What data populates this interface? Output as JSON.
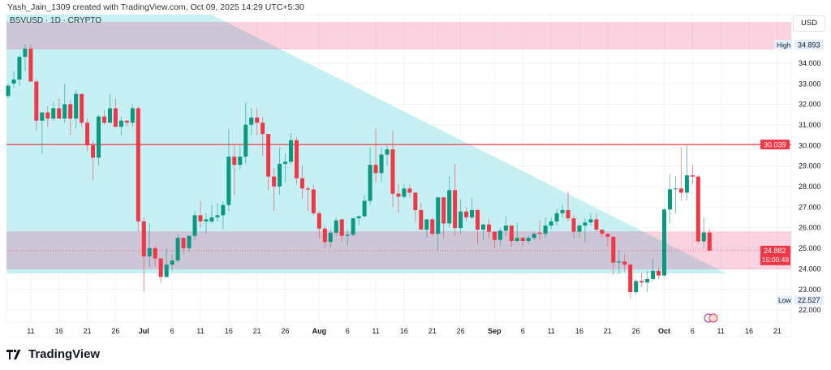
{
  "header": {
    "credit": "Yash_Jain_1309 created with TradingView.com, Oct 09, 2025 14:29 UTC+5:30",
    "symbol": "BSVUSD · 1D · CRYPTO",
    "currency": "USD"
  },
  "footer": {
    "brand": "TradingView"
  },
  "colors": {
    "up": "#089981",
    "down": "#f23645",
    "cyan_zone": "#c6f0f4",
    "pink_zone": "#e91e63",
    "level": "#f23645"
  },
  "chart_data": {
    "type": "candlestick",
    "title": "BSVUSD · 1D · CRYPTO",
    "start_date": "2025-06-07",
    "end_date": "2025-10-09",
    "ylim": [
      21.6,
      36.35
    ],
    "y_ticks": [
      "22.000",
      "23.000",
      "24.000",
      "25.000",
      "26.000",
      "27.000",
      "28.000",
      "29.000",
      "30.000",
      "31.000",
      "32.000",
      "33.000",
      "34.000"
    ],
    "y_tick_values": [
      22,
      23,
      24,
      25,
      26,
      27,
      28,
      29,
      30,
      31,
      32,
      33,
      34
    ],
    "x_ticks": [
      {
        "i": 5,
        "label": "11"
      },
      {
        "i": 10,
        "label": "16"
      },
      {
        "i": 15,
        "label": "21"
      },
      {
        "i": 20,
        "label": "26"
      },
      {
        "i": 25,
        "label": "Jul",
        "bold": true
      },
      {
        "i": 30,
        "label": "6"
      },
      {
        "i": 35,
        "label": "11"
      },
      {
        "i": 40,
        "label": "16"
      },
      {
        "i": 45,
        "label": "21"
      },
      {
        "i": 50,
        "label": "26"
      },
      {
        "i": 56,
        "label": "Aug",
        "bold": true
      },
      {
        "i": 61,
        "label": "6"
      },
      {
        "i": 66,
        "label": "11"
      },
      {
        "i": 71,
        "label": "16"
      },
      {
        "i": 76,
        "label": "21"
      },
      {
        "i": 81,
        "label": "26"
      },
      {
        "i": 87,
        "label": "Sep",
        "bold": true
      },
      {
        "i": 92,
        "label": "6"
      },
      {
        "i": 97,
        "label": "11"
      },
      {
        "i": 102,
        "label": "16"
      },
      {
        "i": 107,
        "label": "21"
      },
      {
        "i": 112,
        "label": "26"
      },
      {
        "i": 117,
        "label": "Oct",
        "bold": true
      },
      {
        "i": 122,
        "label": "6"
      },
      {
        "i": 127,
        "label": "11"
      },
      {
        "i": 132,
        "label": "16"
      },
      {
        "i": 137,
        "label": "21"
      }
    ],
    "candles_ohlc": [
      [
        32.4,
        33.0,
        32.3,
        32.9
      ],
      [
        33.0,
        33.6,
        32.8,
        33.2
      ],
      [
        33.2,
        34.4,
        32.9,
        34.3
      ],
      [
        34.3,
        34.9,
        33.6,
        34.7
      ],
      [
        34.7,
        34.9,
        33.1,
        33.1
      ],
      [
        33.1,
        33.2,
        30.7,
        31.2
      ],
      [
        31.2,
        31.6,
        29.6,
        31.6
      ],
      [
        31.6,
        31.9,
        30.9,
        31.3
      ],
      [
        31.3,
        32.1,
        31.2,
        31.8
      ],
      [
        31.8,
        32.3,
        31.3,
        31.3
      ],
      [
        31.3,
        33.0,
        31.1,
        32.0
      ],
      [
        32.0,
        32.2,
        30.5,
        31.3
      ],
      [
        31.3,
        32.7,
        30.8,
        32.5
      ],
      [
        32.5,
        32.5,
        30.9,
        31.1
      ],
      [
        31.1,
        31.3,
        29.7,
        30.0
      ],
      [
        30.0,
        30.2,
        28.3,
        29.4
      ],
      [
        29.4,
        31.5,
        29.0,
        31.4
      ],
      [
        31.4,
        31.7,
        31.0,
        31.1
      ],
      [
        31.1,
        32.5,
        31.1,
        31.8
      ],
      [
        31.8,
        32.3,
        30.9,
        30.9
      ],
      [
        30.9,
        31.4,
        30.5,
        31.2
      ],
      [
        31.2,
        31.2,
        30.9,
        31.1
      ],
      [
        31.1,
        32.0,
        30.9,
        31.8
      ],
      [
        31.8,
        31.9,
        25.8,
        26.3
      ],
      [
        26.3,
        26.5,
        22.9,
        24.6
      ],
      [
        24.6,
        26.2,
        24.1,
        25.0
      ],
      [
        25.0,
        25.1,
        24.1,
        24.5
      ],
      [
        24.5,
        24.5,
        23.3,
        23.6
      ],
      [
        23.6,
        25.0,
        23.6,
        24.2
      ],
      [
        24.2,
        24.7,
        23.9,
        24.4
      ],
      [
        24.4,
        25.7,
        24.3,
        25.5
      ],
      [
        25.5,
        25.5,
        24.7,
        25.0
      ],
      [
        25.0,
        25.6,
        24.8,
        25.6
      ],
      [
        25.6,
        26.8,
        25.4,
        26.6
      ],
      [
        26.6,
        27.3,
        26.0,
        26.3
      ],
      [
        26.3,
        26.7,
        25.7,
        26.4
      ],
      [
        26.3,
        27.1,
        26.2,
        26.5
      ],
      [
        26.5,
        27.2,
        26.3,
        26.6
      ],
      [
        26.6,
        27.3,
        25.9,
        27.1
      ],
      [
        27.1,
        30.8,
        26.8,
        29.45
      ],
      [
        29.45,
        30.0,
        27.6,
        29.05
      ],
      [
        29.05,
        30.0,
        28.8,
        29.45
      ],
      [
        29.45,
        32.1,
        29.1,
        31.0
      ],
      [
        31.0,
        31.8,
        30.5,
        31.35
      ],
      [
        31.35,
        31.8,
        30.5,
        31.1
      ],
      [
        31.1,
        31.4,
        29.5,
        30.55
      ],
      [
        30.55,
        30.55,
        27.8,
        28.48
      ],
      [
        28.48,
        28.9,
        26.8,
        28.0
      ],
      [
        28.0,
        29.9,
        27.6,
        29.1
      ],
      [
        29.1,
        29.6,
        28.2,
        29.2
      ],
      [
        29.2,
        30.6,
        29.1,
        30.25
      ],
      [
        30.25,
        30.4,
        28.1,
        28.4
      ],
      [
        28.4,
        29.0,
        27.4,
        27.9
      ],
      [
        27.9,
        28.0,
        26.8,
        27.85
      ],
      [
        27.85,
        28.1,
        26.6,
        26.7
      ],
      [
        26.7,
        26.8,
        25.5,
        25.95
      ],
      [
        25.95,
        26.1,
        25.0,
        25.3
      ],
      [
        25.3,
        25.9,
        25.0,
        25.75
      ],
      [
        25.75,
        26.5,
        25.6,
        26.35
      ],
      [
        26.4,
        26.4,
        25.3,
        25.6
      ],
      [
        25.6,
        25.9,
        25.1,
        25.65
      ],
      [
        25.65,
        26.5,
        25.6,
        26.45
      ],
      [
        26.45,
        26.6,
        26.1,
        26.55
      ],
      [
        26.55,
        27.6,
        26.5,
        27.3
      ],
      [
        27.3,
        29.9,
        27.1,
        29.05
      ],
      [
        29.05,
        30.8,
        28.2,
        28.65
      ],
      [
        28.65,
        29.9,
        28.2,
        29.55
      ],
      [
        29.55,
        30.0,
        29.0,
        29.8
      ],
      [
        29.8,
        30.7,
        27.0,
        27.65
      ],
      [
        27.65,
        28.1,
        26.7,
        27.5
      ],
      [
        27.5,
        28.1,
        27.4,
        27.9
      ],
      [
        27.9,
        28.1,
        27.5,
        27.7
      ],
      [
        27.7,
        27.7,
        26.3,
        26.85
      ],
      [
        26.85,
        27.2,
        25.9,
        25.9
      ],
      [
        25.9,
        26.4,
        25.5,
        26.4
      ],
      [
        26.4,
        26.5,
        25.6,
        25.7
      ],
      [
        25.7,
        27.47,
        24.9,
        27.47
      ],
      [
        27.47,
        27.5,
        25.5,
        26.2
      ],
      [
        26.2,
        28.5,
        26.0,
        27.82
      ],
      [
        27.82,
        29.1,
        25.6,
        25.98
      ],
      [
        25.98,
        27.4,
        25.7,
        26.78
      ],
      [
        26.78,
        27.0,
        26.3,
        26.5
      ],
      [
        26.5,
        27.45,
        26.4,
        26.85
      ],
      [
        26.85,
        26.9,
        25.2,
        25.9
      ],
      [
        25.9,
        26.2,
        25.4,
        26.15
      ],
      [
        26.15,
        26.4,
        25.5,
        25.8
      ],
      [
        25.8,
        25.8,
        25.0,
        25.4
      ],
      [
        25.4,
        26.0,
        25.1,
        25.85
      ],
      [
        25.85,
        26.6,
        25.6,
        26.1
      ],
      [
        26.1,
        26.1,
        25.1,
        25.35
      ],
      [
        25.35,
        26.25,
        25.3,
        25.5
      ],
      [
        25.5,
        25.55,
        25.1,
        25.35
      ],
      [
        25.35,
        25.6,
        25.2,
        25.5
      ],
      [
        25.5,
        25.8,
        25.4,
        25.7
      ],
      [
        25.75,
        26.35,
        25.4,
        25.7
      ],
      [
        25.7,
        26.5,
        25.5,
        26.1
      ],
      [
        26.1,
        26.5,
        25.9,
        26.3
      ],
      [
        26.3,
        26.9,
        26.1,
        26.7
      ],
      [
        26.7,
        27.1,
        26.5,
        26.85
      ],
      [
        26.85,
        27.75,
        26.3,
        26.45
      ],
      [
        26.45,
        26.6,
        25.5,
        25.8
      ],
      [
        25.8,
        26.2,
        25.5,
        26.1
      ],
      [
        26.1,
        26.45,
        25.3,
        26.25
      ],
      [
        26.25,
        26.7,
        26.1,
        26.4
      ],
      [
        26.4,
        26.7,
        25.8,
        25.9
      ],
      [
        25.9,
        25.9,
        25.5,
        25.7
      ],
      [
        25.7,
        25.7,
        25.1,
        25.55
      ],
      [
        25.55,
        25.6,
        23.7,
        24.3
      ],
      [
        24.3,
        24.9,
        23.75,
        24.35
      ],
      [
        24.35,
        24.7,
        23.85,
        24.2
      ],
      [
        24.2,
        24.25,
        22.53,
        22.86
      ],
      [
        22.86,
        23.5,
        22.75,
        23.4
      ],
      [
        23.4,
        23.8,
        23.1,
        23.33
      ],
      [
        23.33,
        23.9,
        22.85,
        23.5
      ],
      [
        23.5,
        24.5,
        23.4,
        23.9
      ],
      [
        23.9,
        24.05,
        23.5,
        23.67
      ],
      [
        23.67,
        26.95,
        23.6,
        26.88
      ],
      [
        26.88,
        28.6,
        26.2,
        27.86
      ],
      [
        27.86,
        28.5,
        26.7,
        27.9
      ],
      [
        27.9,
        29.9,
        27.3,
        27.7
      ],
      [
        27.7,
        30.0,
        27.35,
        28.54
      ],
      [
        28.54,
        29.05,
        28.1,
        28.48
      ],
      [
        28.48,
        28.55,
        25.2,
        25.33
      ],
      [
        25.33,
        26.5,
        25.0,
        25.76
      ],
      [
        25.76,
        25.95,
        24.84,
        24.882
      ]
    ],
    "horizontal_line": {
      "price": 30.039,
      "label": "30.039"
    },
    "high": {
      "label": "High",
      "value": "34.893",
      "price": 34.893
    },
    "low": {
      "label": "Low",
      "value": "22.527",
      "price": 22.527
    },
    "last": {
      "value": "24.882",
      "price": 24.882,
      "countdown": "15:00:49"
    },
    "zones": {
      "upper_pink": {
        "price_top": 36.0,
        "price_bottom": 34.66
      },
      "lower_pink": {
        "price_top": 25.82,
        "price_bottom": 23.97
      },
      "cyan_triangle": {
        "price_top": 36.35,
        "price_bottom": 23.77,
        "diag_start_index": 37,
        "diag_end_index": 128
      }
    }
  }
}
